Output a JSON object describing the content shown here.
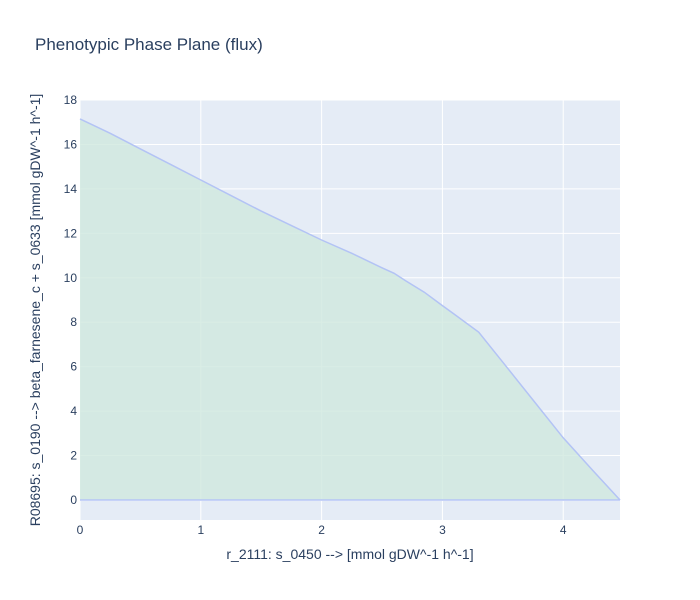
{
  "chart_data": {
    "type": "area",
    "title": "Phenotypic Phase Plane (flux)",
    "xlabel": "r_2111: s_0450 -->  [mmol gDW^-1 h^-1]",
    "ylabel": "R08695: s_0190 --> beta_farnesene_c + s_0633 [mmol gDW^-1 h^-1]",
    "xlim": [
      0,
      4.47
    ],
    "ylim": [
      -0.9,
      18
    ],
    "xticks": [
      0,
      1,
      2,
      3,
      4
    ],
    "yticks": [
      0,
      2,
      4,
      6,
      8,
      10,
      12,
      14,
      16,
      18
    ],
    "grid": true,
    "series": [
      {
        "upper": {
          "x": [
            0,
            0.25,
            0.5,
            0.75,
            1.0,
            1.25,
            1.5,
            1.75,
            2.0,
            2.25,
            2.5,
            2.6,
            2.7,
            2.85,
            3.0,
            3.1,
            3.3,
            3.5,
            3.75,
            4.0,
            4.25,
            4.47
          ],
          "y": [
            17.15,
            16.5,
            15.8,
            15.1,
            14.4,
            13.7,
            13.0,
            12.35,
            11.7,
            11.1,
            10.45,
            10.2,
            9.85,
            9.35,
            8.75,
            8.35,
            7.55,
            6.2,
            4.5,
            2.8,
            1.3,
            0
          ]
        },
        "lower": {
          "x": [
            0,
            4.47
          ],
          "y": [
            0,
            0
          ]
        }
      }
    ],
    "colors": {
      "plot_background": "#e5ecf6",
      "gridline": "#ffffff",
      "line": "#b3c3f5",
      "fill": "#cfe8de",
      "text": "#2a3f5f"
    }
  }
}
